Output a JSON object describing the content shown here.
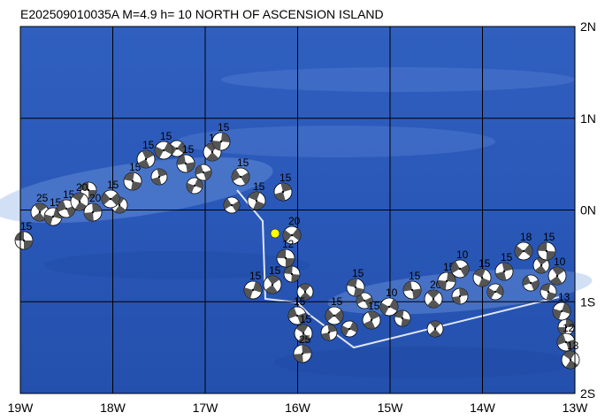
{
  "title": "E202509010035A M=4.9 h= 10 NORTH OF ASCENSION ISLAND",
  "lon_labels": [
    "19W",
    "18W",
    "17W",
    "16W",
    "15W",
    "14W",
    "13W"
  ],
  "lat_labels": [
    "2N",
    "1N",
    "0N",
    "1S",
    "2S"
  ],
  "events": [
    {
      "label": "15"
    },
    {
      "label": "25"
    },
    {
      "label": "15"
    },
    {
      "label": "15"
    },
    {
      "label": "20"
    },
    {
      "label": "20"
    },
    {
      "label": "15"
    },
    {
      "label": "15"
    },
    {
      "label": "15"
    },
    {
      "label": "15"
    },
    {
      "label": "15"
    },
    {
      "label": "15"
    },
    {
      "label": "15"
    },
    {
      "label": "15"
    },
    {
      "label": "15"
    },
    {
      "label": "15"
    },
    {
      "label": "20"
    },
    {
      "label": "12"
    },
    {
      "label": "15"
    },
    {
      "label": "15"
    },
    {
      "label": "15"
    },
    {
      "label": "15"
    },
    {
      "label": "25"
    },
    {
      "label": "15"
    },
    {
      "label": "15"
    },
    {
      "label": "15"
    },
    {
      "label": "10"
    },
    {
      "label": "15"
    },
    {
      "label": "20"
    },
    {
      "label": "15"
    },
    {
      "label": "10"
    },
    {
      "label": "15"
    },
    {
      "label": "15"
    },
    {
      "label": "18"
    },
    {
      "label": "15"
    },
    {
      "label": "10"
    },
    {
      "label": "13"
    },
    {
      "label": "12"
    },
    {
      "label": "13"
    }
  ]
}
